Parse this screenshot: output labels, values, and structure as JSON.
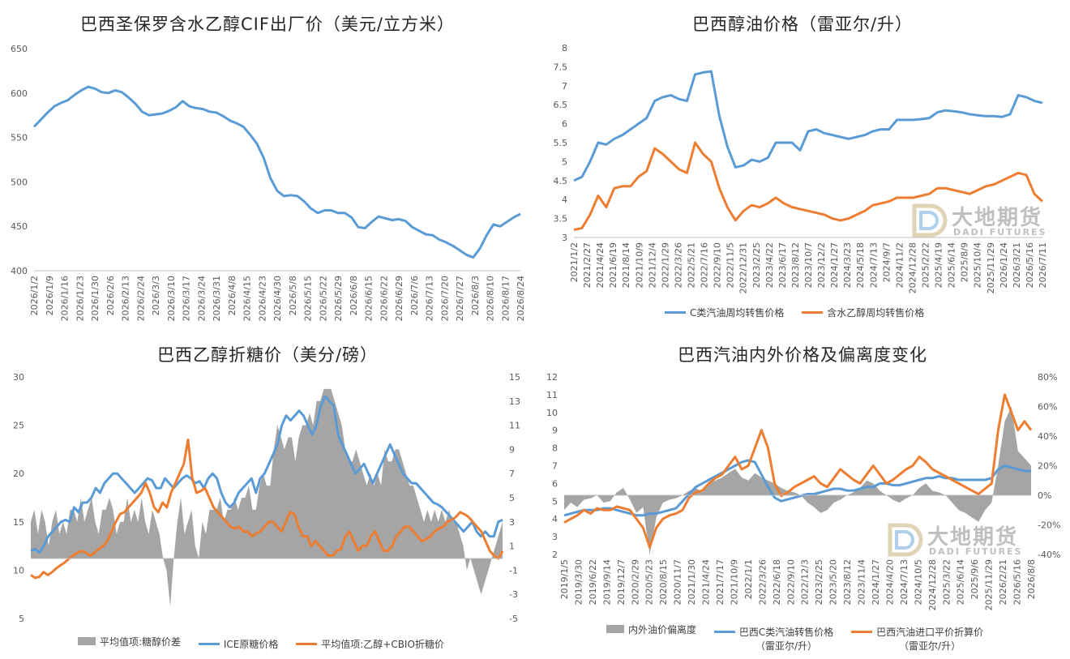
{
  "colors": {
    "blue": "#5b9bd5",
    "orange": "#ed7d31",
    "gray": "#a5a5a5",
    "axis": "#bfbfbf"
  },
  "watermark": {
    "cn": "大地期货",
    "en": "DADI FUTURES",
    "icon": "dadi-logo-icon"
  },
  "chart_data": [
    {
      "type": "line",
      "title": "巴西圣保罗含水乙醇CIF出厂价（美元/立方米）",
      "ylim": [
        400,
        650
      ],
      "yticks": [
        400,
        450,
        500,
        550,
        600,
        650
      ],
      "xticks": [
        "2026/1/2",
        "2026/1/9",
        "2026/1/16",
        "2026/1/23",
        "2026/1/30",
        "2026/2/6",
        "2026/2/13",
        "2026/2/24",
        "2026/3/3",
        "2026/3/10",
        "2026/3/17",
        "2026/3/24",
        "2026/3/31",
        "2026/4/8",
        "2026/4/15",
        "2026/4/23",
        "2026/4/30",
        "2026/5/8",
        "2026/5/15",
        "2026/5/22",
        "2026/5/29",
        "2026/6/8",
        "2026/6/15",
        "2026/6/22",
        "2026/6/29",
        "2026/7/6",
        "2026/7/13",
        "2026/7/20",
        "2026/7/27",
        "2026/8/3",
        "2026/8/10",
        "2026/8/17",
        "2026/8/24"
      ],
      "series": [
        {
          "color": "blue",
          "values": [
            562,
            570,
            578,
            585,
            589,
            592,
            598,
            603,
            607,
            605,
            601,
            600,
            603,
            601,
            595,
            588,
            579,
            575,
            576,
            577,
            580,
            584,
            591,
            585,
            583,
            582,
            579,
            578,
            574,
            569,
            566,
            562,
            553,
            543,
            527,
            504,
            490,
            484,
            485,
            484,
            478,
            470,
            465,
            468,
            468,
            465,
            465,
            460,
            449,
            448,
            455,
            461,
            459,
            457,
            458,
            456,
            449,
            445,
            441,
            440,
            435,
            432,
            428,
            423,
            418,
            415,
            425,
            440,
            452,
            450,
            455,
            460,
            464
          ]
        }
      ]
    },
    {
      "type": "line",
      "title": "巴西醇油价格（雷亚尔/升）",
      "ylim": [
        3,
        8
      ],
      "yticks": [
        "3",
        "3.5",
        "4",
        "4.5",
        "5",
        "5.5",
        "6",
        "6.5",
        "7",
        "7.5",
        "8"
      ],
      "xticks": [
        "2021/1/2",
        "2021/2/27",
        "2021/4/24",
        "2021/6/19",
        "2021/8/14",
        "2021/10/9",
        "2021/12/4",
        "2022/1/29",
        "2022/3/26",
        "2022/5/21",
        "2022/7/16",
        "2022/9/10",
        "2022/11/5",
        "2022/12/31",
        "2023/2/25",
        "2023/4/22",
        "2023/6/17",
        "2023/8/12",
        "2023/10/7",
        "2023/12/2",
        "2024/1/27",
        "2024/3/23",
        "2024/5/18",
        "2024/7/13",
        "2024/9/7",
        "2024/11/2",
        "2024/12/28",
        "2025/2/22",
        "2025/4/19",
        "2025/6/14",
        "2025/8/9",
        "2025/10/4",
        "2025/11/29",
        "2026/1/24",
        "2026/3/21",
        "2026/5/16",
        "2026/7/11"
      ],
      "series": [
        {
          "name": "C类汽油周均转售价格",
          "color": "blue",
          "values": [
            4.5,
            4.6,
            5.0,
            5.5,
            5.45,
            5.6,
            5.7,
            5.85,
            6.0,
            6.15,
            6.6,
            6.7,
            6.75,
            6.65,
            6.6,
            7.3,
            7.35,
            7.38,
            6.2,
            5.4,
            4.85,
            4.9,
            5.05,
            5.0,
            5.1,
            5.5,
            5.5,
            5.5,
            5.3,
            5.8,
            5.85,
            5.75,
            5.7,
            5.65,
            5.6,
            5.65,
            5.7,
            5.8,
            5.85,
            5.85,
            6.1,
            6.1,
            6.1,
            6.12,
            6.15,
            6.3,
            6.35,
            6.33,
            6.3,
            6.25,
            6.22,
            6.2,
            6.2,
            6.18,
            6.25,
            6.75,
            6.7,
            6.6,
            6.55
          ]
        },
        {
          "name": "含水乙醇周均转售价格",
          "color": "orange",
          "values": [
            3.2,
            3.25,
            3.6,
            4.1,
            3.8,
            4.3,
            4.35,
            4.35,
            4.6,
            4.75,
            5.35,
            5.2,
            5.0,
            4.8,
            4.7,
            5.5,
            5.2,
            5.0,
            4.3,
            3.8,
            3.45,
            3.7,
            3.85,
            3.8,
            3.9,
            4.05,
            3.9,
            3.8,
            3.75,
            3.7,
            3.65,
            3.6,
            3.5,
            3.45,
            3.5,
            3.6,
            3.7,
            3.85,
            3.9,
            3.95,
            4.05,
            4.05,
            4.05,
            4.1,
            4.15,
            4.3,
            4.3,
            4.25,
            4.2,
            4.15,
            4.25,
            4.35,
            4.4,
            4.5,
            4.6,
            4.7,
            4.65,
            4.15,
            3.95
          ]
        }
      ]
    },
    {
      "type": "line",
      "title": "巴西乙醇折糖价（美分/磅）",
      "ylim": [
        5,
        30
      ],
      "yticks": [
        5,
        10,
        15,
        20,
        25,
        30
      ],
      "y2lim": [
        -5,
        15
      ],
      "y2ticks": [
        -5,
        -3,
        -1,
        1,
        3,
        5,
        7,
        9,
        11,
        13,
        15
      ],
      "series": [
        {
          "name": "平均值项:糖醇价差",
          "type": "area",
          "axis": "right",
          "color": "gray",
          "values": [
            3,
            4,
            2,
            4,
            3,
            1,
            3,
            4,
            2,
            3,
            2,
            4,
            4,
            3,
            5,
            3,
            4,
            5,
            3,
            2,
            4,
            4,
            5,
            4,
            2,
            3,
            3,
            5,
            3,
            4,
            3,
            5,
            3,
            2,
            4,
            3,
            2,
            0,
            -1,
            -4,
            0,
            3,
            5,
            2,
            3,
            4,
            1,
            0,
            3,
            2,
            4,
            4,
            4,
            5,
            3,
            4,
            4,
            5,
            4,
            5,
            5,
            6,
            4,
            4,
            6,
            7,
            6,
            6,
            9,
            11,
            10,
            9,
            10,
            10,
            8,
            10,
            11,
            11,
            12,
            11,
            13,
            13,
            14,
            14,
            14,
            13,
            12,
            11,
            9,
            8,
            8,
            9,
            8,
            7,
            6,
            7,
            6,
            7,
            6,
            9,
            8,
            8,
            9,
            9,
            8,
            7,
            6,
            6,
            5,
            4,
            3,
            4,
            3,
            4,
            3,
            4,
            3,
            4,
            3,
            3,
            2,
            1,
            -1,
            0,
            -1,
            -2,
            -3,
            -2,
            -1,
            0,
            1,
            2,
            3
          ]
        },
        {
          "name": "ICE原糖价格",
          "color": "blue",
          "axis": "left",
          "values": [
            12,
            12.2,
            11.8,
            12.5,
            13.5,
            14,
            14.5,
            15,
            15.2,
            15,
            16.5,
            16,
            17,
            17,
            17.5,
            18.5,
            18,
            19,
            19.5,
            20,
            20,
            19.5,
            19,
            18.5,
            18,
            18.5,
            19,
            19.5,
            19.3,
            18.5,
            18.5,
            19.5,
            19,
            18.5,
            19,
            19.5,
            19.8,
            19.5,
            19,
            19.2,
            18.5,
            19.5,
            20,
            19.5,
            18,
            17,
            16.5,
            17,
            18,
            18.5,
            19,
            19.5,
            18,
            19.5,
            20,
            21,
            22,
            23,
            25,
            26,
            25.5,
            26,
            26.5,
            26,
            25,
            24,
            25,
            27,
            28,
            27.5,
            27,
            24,
            23,
            22,
            21,
            20,
            20.5,
            21,
            20,
            19,
            20,
            21,
            22,
            23,
            22,
            21,
            20,
            19.5,
            19,
            19,
            18.5,
            18,
            17.5,
            17,
            16.8,
            16.5,
            16,
            15.5,
            15,
            14.5,
            14,
            14.5,
            15,
            14,
            13.5,
            14,
            13.5,
            13.5,
            15,
            15.2
          ]
        },
        {
          "name": "平均值项:乙醇+CBIO折糖价",
          "color": "orange",
          "axis": "left",
          "values": [
            9.5,
            9.2,
            9.3,
            9.8,
            9.5,
            9.8,
            10.2,
            10.5,
            10.8,
            11.2,
            11.5,
            11.8,
            12,
            11.8,
            11.5,
            11.8,
            12.2,
            12.5,
            13,
            14,
            15,
            15.8,
            16,
            16.5,
            17,
            17.5,
            18,
            19,
            18,
            16.5,
            16,
            17,
            16.5,
            18,
            19,
            20,
            21,
            23.5,
            19.5,
            18,
            18.2,
            18.5,
            17.5,
            16.5,
            16,
            15.5,
            15,
            14.5,
            14.3,
            14.5,
            14,
            14,
            13.5,
            13.8,
            14,
            14.5,
            15,
            15,
            14.5,
            14,
            15,
            16,
            15.8,
            14.5,
            13.5,
            13.5,
            12.5,
            13,
            12.5,
            12,
            11.5,
            11.5,
            12,
            12.2,
            13.5,
            14,
            13,
            12,
            12.5,
            12.5,
            13.5,
            14,
            13,
            12,
            12,
            12.5,
            13.5,
            14,
            14.5,
            14.5,
            14,
            13.5,
            13,
            13.2,
            13.5,
            14,
            14.3,
            14.5,
            15,
            15.2,
            15.5,
            16,
            15.8,
            15.5,
            15,
            14.5,
            14,
            13,
            12,
            11.5,
            11.2,
            12
          ]
        }
      ]
    },
    {
      "type": "line",
      "title": "巴西汽油内外价格及偏离度变化",
      "ylim": [
        2,
        12
      ],
      "yticks": [
        2,
        3,
        4,
        5,
        6,
        7,
        8,
        9,
        10,
        11,
        12
      ],
      "y2lim": [
        -40,
        80
      ],
      "y2ticks": [
        "-40%",
        "-20%",
        "0%",
        "20%",
        "40%",
        "60%",
        "80%"
      ],
      "xticks": [
        "2019/1/5",
        "2019/3/30",
        "2019/6/22",
        "2019/9/14",
        "2019/12/7",
        "2020/2/29",
        "2020/5/23",
        "2020/8/15",
        "2020/11/7",
        "2021/1/30",
        "2021/4/24",
        "2021/7/17",
        "2021/10/9",
        "2022/1/1",
        "2022/3/26",
        "2022/6/18",
        "2022/9/10",
        "2022/12/3",
        "2023/2/25",
        "2023/5/20",
        "2023/8/12",
        "2023/11/4",
        "2024/1/27",
        "2024/4/20",
        "2024/7/13",
        "2024/10/5",
        "2024/12/28",
        "2025/3/22",
        "2025/6/14",
        "2025/9/6",
        "2025/11/29",
        "2026/2/21",
        "2026/5/16",
        "2026/8/8"
      ],
      "series": [
        {
          "name": "内外油价偏离度",
          "type": "area",
          "axis": "right",
          "color": "gray",
          "values": [
            -10,
            -5,
            -8,
            -3,
            -2,
            0,
            -5,
            -4,
            2,
            5,
            -3,
            -12,
            -8,
            -40,
            -15,
            -5,
            -3,
            -2,
            0,
            3,
            5,
            2,
            8,
            10,
            12,
            15,
            18,
            12,
            10,
            15,
            12,
            10,
            8,
            5,
            3,
            2,
            0,
            -5,
            -8,
            -12,
            -10,
            -5,
            -3,
            0,
            2,
            5,
            10,
            8,
            3,
            0,
            -3,
            -5,
            -2,
            0,
            5,
            8,
            3,
            2,
            0,
            -5,
            -10,
            -12,
            -15,
            -18,
            -10,
            -5,
            20,
            50,
            60,
            30,
            25,
            20
          ]
        },
        {
          "name": "巴西C类汽油转售价格（雷亚尔/升）",
          "color": "blue",
          "axis": "left",
          "values": [
            4.2,
            4.3,
            4.4,
            4.5,
            4.5,
            4.5,
            4.6,
            4.6,
            4.5,
            4.4,
            4.3,
            4.2,
            4.2,
            4.3,
            4.3,
            4.4,
            4.5,
            4.6,
            5.0,
            5.4,
            5.8,
            6.0,
            6.2,
            6.4,
            6.6,
            6.8,
            7.0,
            7.2,
            7.3,
            7.2,
            6.5,
            5.8,
            5.2,
            5.0,
            5.1,
            5.2,
            5.3,
            5.4,
            5.4,
            5.5,
            5.6,
            5.7,
            5.7,
            5.6,
            5.6,
            5.7,
            5.8,
            5.8,
            6.0,
            6.0,
            5.9,
            5.9,
            6.0,
            6.1,
            6.2,
            6.3,
            6.3,
            6.4,
            6.3,
            6.3,
            6.2,
            6.2,
            6.2,
            6.2,
            6.2,
            6.3,
            6.8,
            7.0,
            6.9,
            6.8,
            6.7,
            6.7
          ]
        },
        {
          "name": "巴西汽油进口平价折算价（雷亚尔/升）",
          "color": "orange",
          "axis": "left",
          "values": [
            3.8,
            4.0,
            4.2,
            4.5,
            4.3,
            4.6,
            4.5,
            4.5,
            4.7,
            4.6,
            4.5,
            4.0,
            3.5,
            2.4,
            3.5,
            4.0,
            4.2,
            4.3,
            4.5,
            5.2,
            5.5,
            5.6,
            6.0,
            6.3,
            6.5,
            7.0,
            7.5,
            6.8,
            7.0,
            8.0,
            9.0,
            8.0,
            6.0,
            5.3,
            5.5,
            5.8,
            6.0,
            6.2,
            6.4,
            6.0,
            5.8,
            6.3,
            6.8,
            6.5,
            6.2,
            6.0,
            6.5,
            7.0,
            6.5,
            6.0,
            6.2,
            6.5,
            6.8,
            7.0,
            7.5,
            7.2,
            6.8,
            6.6,
            6.4,
            6.2,
            6.0,
            5.8,
            5.6,
            5.4,
            5.7,
            6.0,
            9.0,
            11.0,
            10.0,
            9.0,
            9.5,
            9.0
          ]
        }
      ]
    }
  ],
  "legends": {
    "p2": [
      "C类汽油周均转售价格",
      "含水乙醇周均转售价格"
    ],
    "p3": [
      "平均值项:糖醇价差",
      "ICE原糖价格",
      "平均值项:乙醇+CBIO折糖价"
    ],
    "p4a": "内外油价偏离度",
    "p4b1": "巴西C类汽油转售价格",
    "p4b2": "（雷亚尔/升）",
    "p4c1": "巴西汽油进口平价折算价",
    "p4c2": "（雷亚尔/升）"
  }
}
